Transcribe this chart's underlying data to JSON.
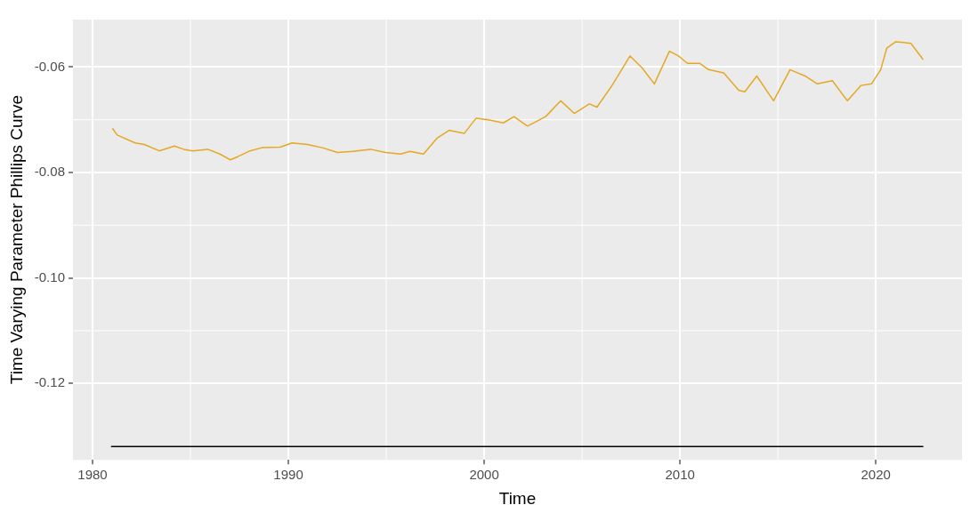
{
  "chart_data": {
    "type": "line",
    "xlabel": "Time",
    "ylabel": "Time Varying Parameter Phillips Curve",
    "xlim": [
      1979,
      2024.4
    ],
    "ylim": [
      -0.1345,
      -0.051
    ],
    "xticks": [
      1980,
      1990,
      2000,
      2010,
      2020
    ],
    "yticks": [
      -0.12,
      {
        "value": -0.1,
        "label": "-0.10"
      },
      -0.08,
      -0.06
    ],
    "grid": true,
    "legend": false,
    "marker": "none",
    "line_style": "solid",
    "series": [
      {
        "color": "#e5a823",
        "x": [
          1981.03,
          1981.26,
          1982.18,
          1982.64,
          1983.41,
          1984.18,
          1984.65,
          1985.11,
          1985.88,
          1986.5,
          1987.04,
          1987.42,
          1988.04,
          1988.65,
          1989.58,
          1990.19,
          1990.97,
          1991.73,
          1992.51,
          1993.28,
          1994.2,
          1994.97,
          1995.74,
          1996.2,
          1996.9,
          1997.59,
          1998.21,
          1998.98,
          1999.59,
          2000.21,
          2000.98,
          2001.52,
          2002.21,
          2003.14,
          2003.91,
          2004.6,
          2005.37,
          2005.76,
          2006.53,
          2007.45,
          2008.07,
          2008.69,
          2009.46,
          2009.92,
          2010.38,
          2011.0,
          2011.46,
          2012.23,
          2013.0,
          2013.31,
          2013.92,
          2014.78,
          2015.62,
          2016.39,
          2017.01,
          2017.78,
          2018.55,
          2019.24,
          2019.78,
          2020.25,
          2020.56,
          2021.02,
          2021.79,
          2022.4
        ],
        "values": [
          -0.0717,
          -0.0729,
          -0.0744,
          -0.0747,
          -0.0759,
          -0.075,
          -0.0756,
          -0.0759,
          -0.0756,
          -0.0765,
          -0.0776,
          -0.077,
          -0.0759,
          -0.0753,
          -0.0752,
          -0.0744,
          -0.0747,
          -0.0753,
          -0.0762,
          -0.076,
          -0.0756,
          -0.0762,
          -0.0765,
          -0.076,
          -0.0765,
          -0.0735,
          -0.072,
          -0.0726,
          -0.0697,
          -0.07,
          -0.0706,
          -0.0694,
          -0.0712,
          -0.0694,
          -0.0664,
          -0.0688,
          -0.067,
          -0.0676,
          -0.0635,
          -0.0579,
          -0.0602,
          -0.0632,
          -0.057,
          -0.0579,
          -0.0593,
          -0.0593,
          -0.0605,
          -0.0611,
          -0.0644,
          -0.0647,
          -0.0617,
          -0.0664,
          -0.0605,
          -0.0617,
          -0.0632,
          -0.0626,
          -0.0664,
          -0.0635,
          -0.0632,
          -0.0605,
          -0.0564,
          -0.0552,
          -0.0555,
          -0.0585
        ]
      },
      {
        "color": "#000000",
        "x": [
          1980.97,
          2022.4
        ],
        "values": [
          -0.132,
          -0.132
        ]
      }
    ]
  }
}
